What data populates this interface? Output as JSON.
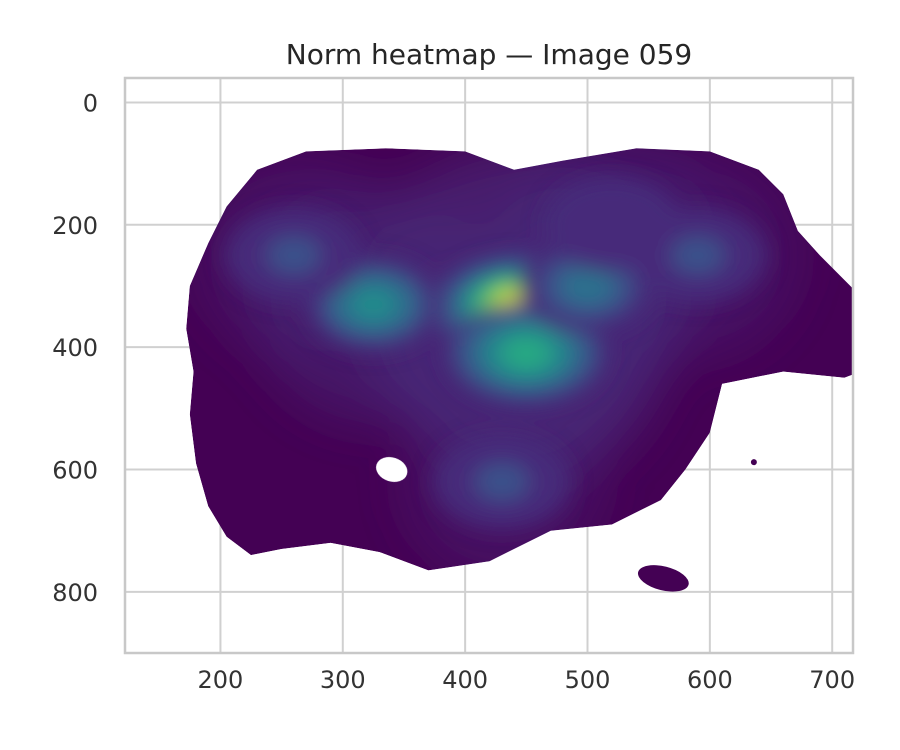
{
  "chart_data": {
    "type": "heatmap",
    "title": "Norm heatmap — Image 059",
    "xlabel": "",
    "ylabel": "",
    "xlim": [
      122,
      717
    ],
    "ylim": [
      900,
      -40
    ],
    "y_inverted": true,
    "grid": true,
    "colormap": "viridis",
    "x_ticks": [
      200,
      300,
      400,
      500,
      600,
      700
    ],
    "y_ticks": [
      0,
      200,
      400,
      600,
      800
    ],
    "x_tick_labels": [
      "200",
      "300",
      "400",
      "500",
      "600",
      "700"
    ],
    "y_tick_labels": [
      "0",
      "200",
      "400",
      "600",
      "800"
    ],
    "density_outline": [
      [
        270,
        80
      ],
      [
        335,
        75
      ],
      [
        400,
        80
      ],
      [
        440,
        110
      ],
      [
        480,
        95
      ],
      [
        540,
        75
      ],
      [
        600,
        80
      ],
      [
        640,
        110
      ],
      [
        660,
        150
      ],
      [
        672,
        210
      ],
      [
        690,
        250
      ],
      [
        710,
        290
      ],
      [
        735,
        340
      ],
      [
        755,
        380
      ],
      [
        750,
        420
      ],
      [
        710,
        450
      ],
      [
        660,
        440
      ],
      [
        610,
        460
      ],
      [
        600,
        540
      ],
      [
        580,
        600
      ],
      [
        560,
        650
      ],
      [
        520,
        690
      ],
      [
        470,
        700
      ],
      [
        420,
        750
      ],
      [
        370,
        765
      ],
      [
        330,
        735
      ],
      [
        290,
        720
      ],
      [
        250,
        730
      ],
      [
        225,
        740
      ],
      [
        205,
        710
      ],
      [
        190,
        660
      ],
      [
        180,
        590
      ],
      [
        175,
        510
      ],
      [
        178,
        440
      ],
      [
        172,
        370
      ],
      [
        175,
        300
      ],
      [
        190,
        230
      ],
      [
        205,
        170
      ],
      [
        230,
        110
      ]
    ],
    "hole_regions": [
      {
        "center": [
          340,
          600
        ],
        "radius": [
          16,
          12
        ]
      }
    ],
    "small_regions": [
      {
        "center": [
          562,
          778
        ],
        "radius": [
          26,
          12
        ]
      },
      {
        "center": [
          636,
          588
        ],
        "radius": [
          3,
          3
        ]
      }
    ],
    "density_peaks": [
      {
        "x": 443,
        "y": 335,
        "intensity": 1.0
      },
      {
        "x": 450,
        "y": 410,
        "intensity": 0.62
      },
      {
        "x": 325,
        "y": 330,
        "intensity": 0.42
      },
      {
        "x": 500,
        "y": 300,
        "intensity": 0.32
      },
      {
        "x": 590,
        "y": 250,
        "intensity": 0.16
      },
      {
        "x": 260,
        "y": 250,
        "intensity": 0.14
      },
      {
        "x": 430,
        "y": 620,
        "intensity": 0.14
      },
      {
        "x": 520,
        "y": 200,
        "intensity": 0.12
      }
    ]
  }
}
